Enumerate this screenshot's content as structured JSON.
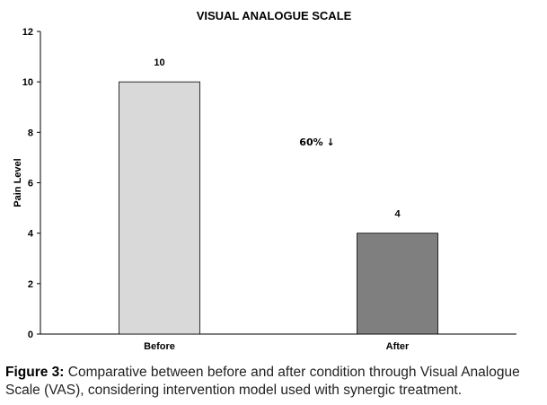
{
  "chart_data": {
    "type": "bar",
    "title": "VISUAL ANALOGUE SCALE",
    "ylabel": "Pain Level",
    "xlabel": "",
    "categories": [
      "Before",
      "After"
    ],
    "values": [
      10,
      4
    ],
    "bar_colors": [
      "#d9d9d9",
      "#7f7f7f"
    ],
    "ylim": [
      0,
      12
    ],
    "yticks": [
      0,
      2,
      4,
      6,
      8,
      10,
      12
    ],
    "data_labels": [
      "10",
      "4"
    ],
    "annotations": [
      "60% ↓"
    ],
    "grid": false,
    "legend": null
  },
  "caption": {
    "label": "Figure 3:",
    "text": " Comparative between before and after condition through Visual Analogue Scale (VAS), considering intervention model used with synergic treatment."
  }
}
